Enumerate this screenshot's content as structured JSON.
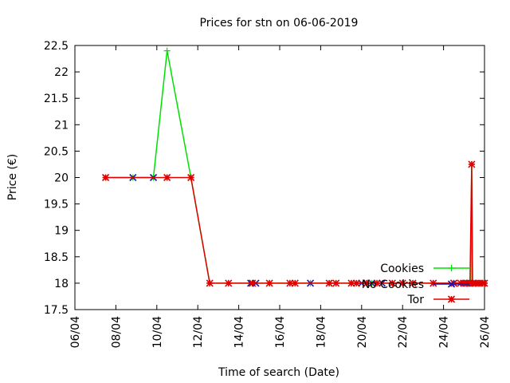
{
  "chart_data": {
    "type": "line",
    "title": "Prices for stn on 06-06-2019",
    "xlabel": "Time of search (Date)",
    "ylabel": "Price (€)",
    "x_unit": "date (day/month, 2019)",
    "xlim": [
      "06/04",
      "26/04"
    ],
    "ylim": [
      17.5,
      22.5
    ],
    "x_ticks": [
      "06/04",
      "08/04",
      "10/04",
      "12/04",
      "14/04",
      "16/04",
      "18/04",
      "20/04",
      "22/04",
      "24/04",
      "26/04"
    ],
    "y_ticks": [
      "17.5",
      "18",
      "18.5",
      "19",
      "19.5",
      "20",
      "20.5",
      "21",
      "21.5",
      "22",
      "22.5"
    ],
    "grid": false,
    "legend_position": "bottom-right",
    "series": [
      {
        "name": "Cookies",
        "color": "#00e000",
        "marker": "plus",
        "points": [
          [
            "07/04 12:00",
            20
          ],
          [
            "08/04 20:00",
            20
          ],
          [
            "09/04 20:00",
            20
          ],
          [
            "10/04 12:00",
            22.4
          ],
          [
            "11/04 16:00",
            20
          ],
          [
            "12/04 14:00",
            18
          ],
          [
            "13/04 12:00",
            18
          ],
          [
            "14/04 12:00",
            18
          ],
          [
            "15/04 12:00",
            18
          ],
          [
            "16/04 12:00",
            18
          ],
          [
            "17/04 12:00",
            18
          ],
          [
            "18/04 12:00",
            18
          ],
          [
            "19/04 12:00",
            18
          ],
          [
            "20/04 12:00",
            18
          ],
          [
            "21/04 12:00",
            18
          ],
          [
            "22/04 12:00",
            18
          ],
          [
            "23/04 12:00",
            18
          ],
          [
            "24/04 12:00",
            18
          ],
          [
            "25/04 00:00",
            18
          ],
          [
            "25/04 08:00",
            18
          ],
          [
            "25/04 09:00",
            20.25
          ],
          [
            "25/04 10:00",
            18
          ],
          [
            "25/04 16:00",
            18
          ],
          [
            "26/04 00:00",
            18
          ]
        ]
      },
      {
        "name": "No Cookies",
        "color": "#1a1aaa",
        "marker": "x",
        "points": [
          [
            "08/04 20:00",
            20
          ],
          [
            "09/04 20:00",
            20
          ],
          [
            "14/04 14:00",
            18
          ],
          [
            "14/04 20:00",
            18
          ],
          [
            "17/04 12:00",
            18
          ],
          [
            "20/04 00:00",
            18
          ],
          [
            "20/04 12:00",
            18
          ],
          [
            "21/04 00:00",
            18
          ],
          [
            "24/04 12:00",
            18
          ],
          [
            "25/04 02:00",
            18
          ],
          [
            "25/04 06:00",
            18
          ],
          [
            "25/04 10:00",
            18
          ]
        ]
      },
      {
        "name": "Tor",
        "color": "#e00000",
        "marker": "star",
        "points": [
          [
            "07/04 12:00",
            20
          ],
          [
            "10/04 12:00",
            20
          ],
          [
            "11/04 16:00",
            20
          ],
          [
            "12/04 14:00",
            18
          ],
          [
            "13/04 12:00",
            18
          ],
          [
            "14/04 16:00",
            18
          ],
          [
            "15/04 12:00",
            18
          ],
          [
            "16/04 12:00",
            18
          ],
          [
            "16/04 18:00",
            18
          ],
          [
            "18/04 10:00",
            18
          ],
          [
            "18/04 18:00",
            18
          ],
          [
            "19/04 12:00",
            18
          ],
          [
            "19/04 18:00",
            18
          ],
          [
            "20/04 06:00",
            18
          ],
          [
            "20/04 18:00",
            18
          ],
          [
            "21/04 12:00",
            18
          ],
          [
            "22/04 00:00",
            18
          ],
          [
            "22/04 12:00",
            18
          ],
          [
            "23/04 12:00",
            18
          ],
          [
            "24/04 12:00",
            18
          ],
          [
            "24/04 20:00",
            18
          ],
          [
            "25/04 00:00",
            18
          ],
          [
            "25/04 04:00",
            18
          ],
          [
            "25/04 07:00",
            18
          ],
          [
            "25/04 09:00",
            20.25
          ],
          [
            "25/04 10:00",
            18
          ],
          [
            "25/04 14:00",
            18
          ],
          [
            "25/04 18:00",
            18
          ],
          [
            "25/04 22:00",
            18
          ],
          [
            "26/04 00:00",
            18
          ]
        ]
      }
    ]
  }
}
